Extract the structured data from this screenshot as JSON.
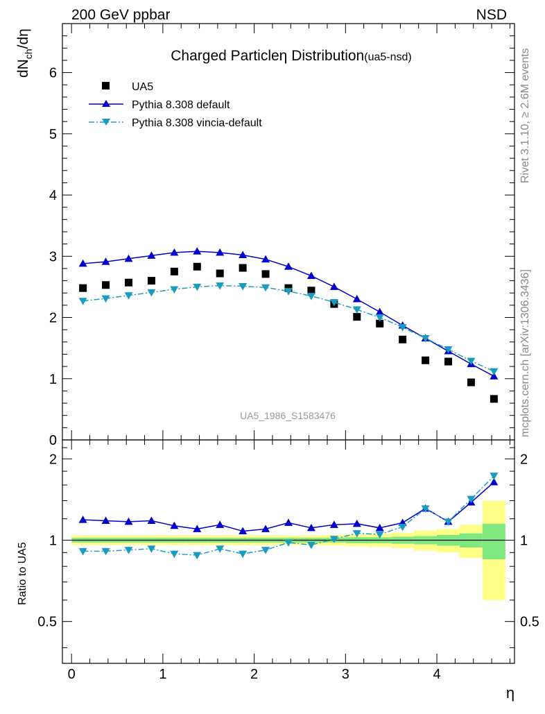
{
  "header": {
    "energy_label": "200 GeV ppbar",
    "process_label": "NSD"
  },
  "side_labels": {
    "rivet": "Rivet 3.1.10, ≥ 2.6M events",
    "mcplots": "mcplots.cern.ch [arXiv:1306.3436]"
  },
  "chart_data": [
    {
      "type": "scatter",
      "title": "Charged Particle",
      "title_symbol": "η",
      "title_rest": " Distribution",
      "title_tag": "(ua5-nsd)",
      "ylabel_main": "dN",
      "ylabel_sub": "ch",
      "ylabel_rest": "/dη",
      "watermark": "UA5_1986_S1583476",
      "ylim": [
        0,
        6.8
      ],
      "xlim": [
        -0.1,
        4.85
      ],
      "yticks": [
        0,
        1,
        2,
        3,
        4,
        5,
        6
      ],
      "ytick_labels": [
        "0",
        "1",
        "2",
        "3",
        "4",
        "5",
        "6"
      ],
      "grid": false,
      "legend_position": "top-left",
      "x": [
        0.125,
        0.375,
        0.625,
        0.875,
        1.125,
        1.375,
        1.625,
        1.875,
        2.125,
        2.375,
        2.625,
        2.875,
        3.125,
        3.375,
        3.625,
        3.875,
        4.125,
        4.375,
        4.625
      ],
      "series": [
        {
          "name": "UA5",
          "marker": "square",
          "color": "#000000",
          "values": [
            2.48,
            2.53,
            2.57,
            2.6,
            2.75,
            2.83,
            2.72,
            2.81,
            2.71,
            2.48,
            2.44,
            2.22,
            2.01,
            1.9,
            1.64,
            1.3,
            1.28,
            0.94,
            0.67
          ]
        },
        {
          "name": "Pythia 8.308 default",
          "marker": "triangle-up",
          "line": "solid",
          "color": "#0000cc",
          "values": [
            2.88,
            2.91,
            2.96,
            3.01,
            3.06,
            3.08,
            3.06,
            3.02,
            2.95,
            2.83,
            2.68,
            2.5,
            2.3,
            2.09,
            1.87,
            1.66,
            1.45,
            1.24,
            1.04
          ]
        },
        {
          "name": "Pythia 8.308 vincia-default",
          "marker": "triangle-down",
          "line": "dash-dot",
          "color": "#1a9cc0",
          "values": [
            2.27,
            2.31,
            2.36,
            2.41,
            2.46,
            2.5,
            2.52,
            2.51,
            2.49,
            2.43,
            2.35,
            2.25,
            2.13,
            2.0,
            1.84,
            1.66,
            1.48,
            1.29,
            1.12
          ]
        }
      ]
    },
    {
      "type": "scatter",
      "ylabel": "Ratio to UA5",
      "ylim": [
        0.35,
        2.35
      ],
      "xlim": [
        -0.1,
        4.85
      ],
      "xlabel": "η",
      "xticks": [
        0,
        1,
        2,
        3,
        4
      ],
      "xtick_labels": [
        "0",
        "1",
        "2",
        "3",
        "4"
      ],
      "yticks": [
        0.5,
        1,
        2
      ],
      "ytick_labels": [
        "0.5",
        "1",
        "2"
      ],
      "x": [
        0.125,
        0.375,
        0.625,
        0.875,
        1.125,
        1.375,
        1.625,
        1.875,
        2.125,
        2.375,
        2.625,
        2.875,
        3.125,
        3.375,
        3.625,
        3.875,
        4.125,
        4.375,
        4.625
      ],
      "uncertainty_bands": {
        "stat_color": "#7fe87f",
        "total_color": "#ffff88",
        "stat": [
          0.02,
          0.02,
          0.02,
          0.02,
          0.02,
          0.02,
          0.02,
          0.02,
          0.02,
          0.02,
          0.02,
          0.02,
          0.025,
          0.025,
          0.03,
          0.035,
          0.045,
          0.06,
          0.15
        ],
        "total": [
          0.04,
          0.04,
          0.04,
          0.04,
          0.04,
          0.04,
          0.04,
          0.04,
          0.04,
          0.04,
          0.04,
          0.045,
          0.05,
          0.055,
          0.065,
          0.085,
          0.1,
          0.14,
          0.4
        ]
      },
      "series": [
        {
          "name": "Pythia 8.308 default",
          "marker": "triangle-up",
          "line": "solid",
          "color": "#0000cc",
          "values": [
            1.19,
            1.18,
            1.17,
            1.18,
            1.13,
            1.1,
            1.14,
            1.08,
            1.1,
            1.16,
            1.11,
            1.14,
            1.15,
            1.11,
            1.16,
            1.31,
            1.17,
            1.38,
            1.64
          ]
        },
        {
          "name": "Pythia 8.308 vincia-default",
          "marker": "triangle-down",
          "line": "dash-dot",
          "color": "#1a9cc0",
          "values": [
            0.91,
            0.91,
            0.92,
            0.93,
            0.89,
            0.88,
            0.93,
            0.89,
            0.92,
            0.98,
            0.96,
            1.01,
            1.06,
            1.05,
            1.12,
            1.31,
            1.17,
            1.42,
            1.73
          ]
        }
      ]
    }
  ]
}
